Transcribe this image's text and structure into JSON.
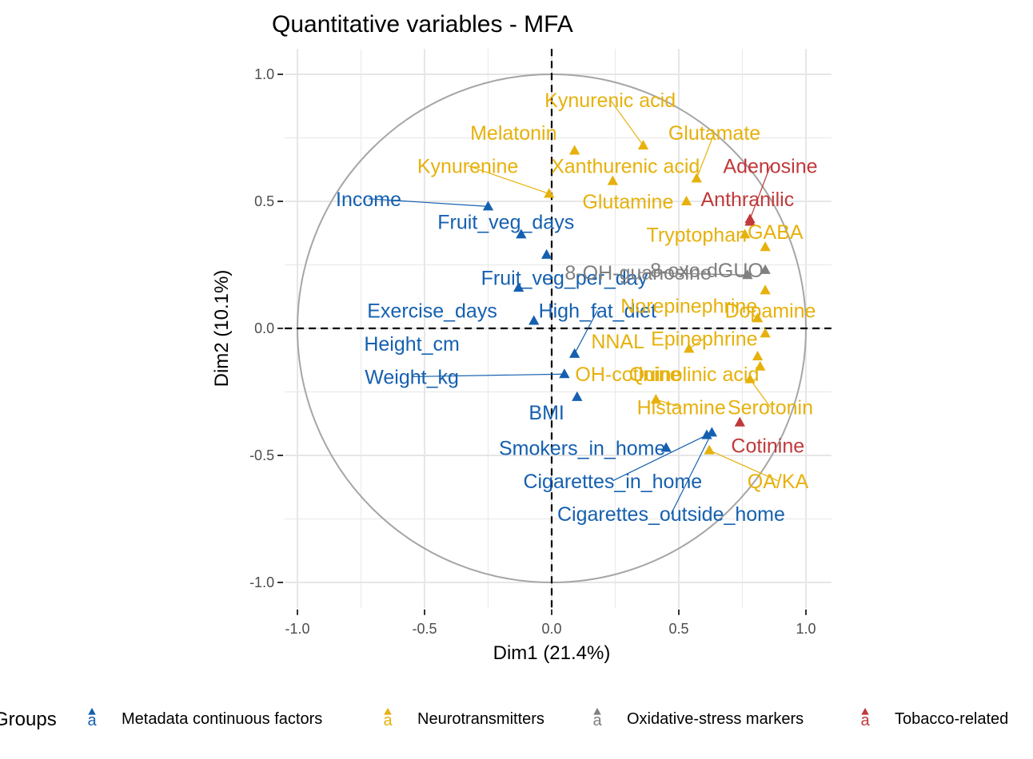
{
  "chart_data": {
    "type": "scatter",
    "title": "Quantitative variables - MFA",
    "xlabel": "Dim1 (21.4%)",
    "ylabel": "Dim2 (10.1%)",
    "xlim": [
      -1.05,
      1.1
    ],
    "ylim": [
      -1.1,
      1.1
    ],
    "x_ticks": [
      "-1.0",
      "-0.5",
      "0.0",
      "0.5",
      "1.0"
    ],
    "y_ticks": [
      "1.0",
      "0.5",
      "0.0",
      "-0.5",
      "-1.0"
    ],
    "grid": true,
    "correlation_circle": true,
    "legend_position": "bottom",
    "legend_title": "Groups",
    "groups": [
      {
        "name": "Metadata continuous factors",
        "color": "#1560b0"
      },
      {
        "name": "Neurotransmitters",
        "color": "#e6b10c"
      },
      {
        "name": "Oxidative-stress markers",
        "color": "#7f7f7f"
      },
      {
        "name": "Tobacco-related",
        "color": "#c0393b"
      }
    ],
    "points": [
      {
        "label": "Income",
        "group": 0,
        "x": -0.25,
        "y": 0.48,
        "lx": -0.72,
        "ly": 0.51,
        "line": true
      },
      {
        "label": "Fruit_veg_days",
        "group": 0,
        "x": -0.12,
        "y": 0.37,
        "lx": -0.18,
        "ly": 0.42,
        "line": false
      },
      {
        "label": "Fruit_veg_per_day",
        "group": 0,
        "x": -0.13,
        "y": 0.16,
        "lx": 0.05,
        "ly": 0.2,
        "line": false
      },
      {
        "label": "Exercise_days",
        "group": 0,
        "x": -0.02,
        "y": 0.29,
        "lx": -0.47,
        "ly": 0.07,
        "line": false
      },
      {
        "label": "High_fat_diet",
        "group": 0,
        "x": 0.09,
        "y": -0.1,
        "lx": 0.18,
        "ly": 0.07,
        "line": true
      },
      {
        "label": "Height_cm",
        "group": 0,
        "x": -0.07,
        "y": 0.03,
        "lx": -0.55,
        "ly": -0.06,
        "line": false
      },
      {
        "label": "Weight_kg",
        "group": 0,
        "x": 0.05,
        "y": -0.18,
        "lx": -0.55,
        "ly": -0.19,
        "line": true
      },
      {
        "label": "BMI",
        "group": 0,
        "x": 0.1,
        "y": -0.27,
        "lx": -0.02,
        "ly": -0.33,
        "line": false
      },
      {
        "label": "Smokers_in_home",
        "group": 0,
        "x": 0.45,
        "y": -0.47,
        "lx": 0.12,
        "ly": -0.47,
        "line": false
      },
      {
        "label": "Cigarettes_in_home",
        "group": 0,
        "x": 0.61,
        "y": -0.42,
        "lx": 0.24,
        "ly": -0.6,
        "line": true
      },
      {
        "label": "Cigarettes_outside_home",
        "group": 0,
        "x": 0.63,
        "y": -0.41,
        "lx": 0.47,
        "ly": -0.73,
        "line": true
      },
      {
        "label": "Kynurenic acid",
        "group": 1,
        "x": 0.36,
        "y": 0.72,
        "lx": 0.23,
        "ly": 0.9,
        "line": true
      },
      {
        "label": "Melatonin",
        "group": 1,
        "x": 0.09,
        "y": 0.7,
        "lx": -0.15,
        "ly": 0.77,
        "line": false
      },
      {
        "label": "Glutamate",
        "group": 1,
        "x": 0.57,
        "y": 0.59,
        "lx": 0.64,
        "ly": 0.77,
        "line": true
      },
      {
        "label": "Kynurenine",
        "group": 1,
        "x": -0.01,
        "y": 0.53,
        "lx": -0.33,
        "ly": 0.64,
        "line": true
      },
      {
        "label": "Xanthurenic acid",
        "group": 1,
        "x": 0.24,
        "y": 0.58,
        "lx": 0.29,
        "ly": 0.64,
        "line": false
      },
      {
        "label": "Glutamine",
        "group": 1,
        "x": 0.53,
        "y": 0.5,
        "lx": 0.3,
        "ly": 0.5,
        "line": false
      },
      {
        "label": "Tryptophan",
        "group": 1,
        "x": 0.76,
        "y": 0.37,
        "lx": 0.57,
        "ly": 0.37,
        "line": false
      },
      {
        "label": "GABA",
        "group": 1,
        "x": 0.84,
        "y": 0.32,
        "lx": 0.88,
        "ly": 0.38,
        "line": false
      },
      {
        "label": "Norepinephrine",
        "group": 1,
        "x": 0.84,
        "y": 0.15,
        "lx": 0.54,
        "ly": 0.09,
        "line": false
      },
      {
        "label": "Dopamine",
        "group": 1,
        "x": 0.81,
        "y": 0.04,
        "lx": 0.86,
        "ly": 0.07,
        "line": false
      },
      {
        "label": "NNAL",
        "group": 1,
        "x": 0.84,
        "y": -0.02,
        "lx": 0.26,
        "ly": -0.05,
        "line": false
      },
      {
        "label": "Epinephrine",
        "group": 1,
        "x": 0.54,
        "y": -0.08,
        "lx": 0.6,
        "ly": -0.04,
        "line": true
      },
      {
        "label": "OH-cotinine",
        "group": 1,
        "x": 0.81,
        "y": -0.11,
        "lx": 0.3,
        "ly": -0.18,
        "line": false
      },
      {
        "label": "Quinolinic acid",
        "group": 1,
        "x": 0.82,
        "y": -0.15,
        "lx": 0.56,
        "ly": -0.18,
        "line": false
      },
      {
        "label": "Histamine",
        "group": 1,
        "x": 0.41,
        "y": -0.28,
        "lx": 0.51,
        "ly": -0.31,
        "line": true
      },
      {
        "label": "Serotonin",
        "group": 1,
        "x": 0.78,
        "y": -0.2,
        "lx": 0.86,
        "ly": -0.31,
        "line": true
      },
      {
        "label": "QA/KA",
        "group": 1,
        "x": 0.62,
        "y": -0.48,
        "lx": 0.89,
        "ly": -0.6,
        "line": true
      },
      {
        "label": "8-OH-guanosine",
        "group": 2,
        "x": 0.77,
        "y": 0.21,
        "lx": 0.34,
        "ly": 0.22,
        "line": true
      },
      {
        "label": "8-oxo-dGUO",
        "group": 2,
        "x": 0.84,
        "y": 0.23,
        "lx": 0.61,
        "ly": 0.23,
        "line": false
      },
      {
        "label": "Adenosine",
        "group": 3,
        "x": 0.78,
        "y": 0.43,
        "lx": 0.86,
        "ly": 0.64,
        "line": true
      },
      {
        "label": "Anthranilic",
        "group": 3,
        "x": 0.78,
        "y": 0.42,
        "lx": 0.77,
        "ly": 0.51,
        "line": false
      },
      {
        "label": "Cotinine",
        "group": 3,
        "x": 0.74,
        "y": -0.37,
        "lx": 0.85,
        "ly": -0.46,
        "line": false
      }
    ]
  }
}
